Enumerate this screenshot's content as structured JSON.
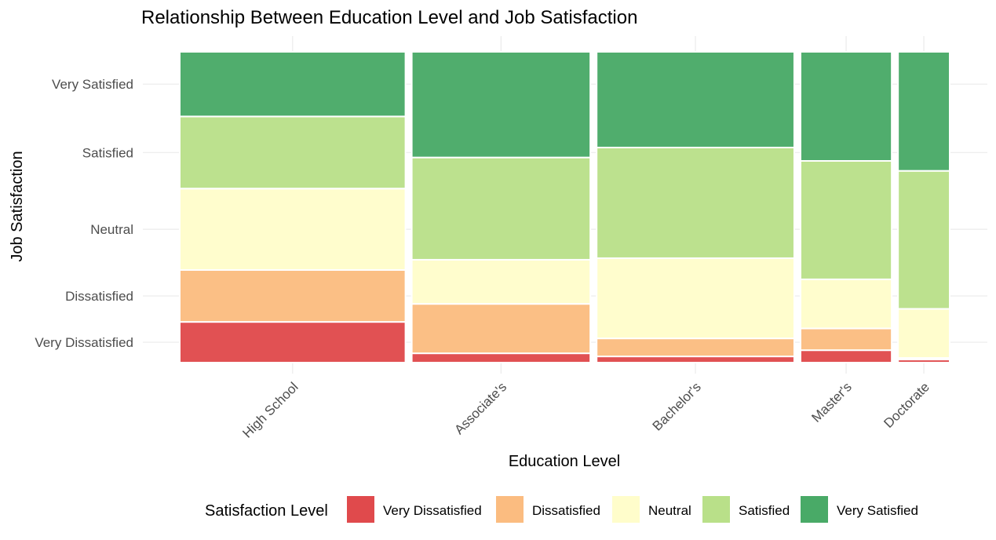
{
  "chart_data": {
    "type": "mosaic",
    "title": "Relationship Between Education Level and Job Satisfaction",
    "xlabel": "Education Level",
    "ylabel": "Job Satisfaction",
    "categories": [
      "High School",
      "Associate's",
      "Bachelor's",
      "Master's",
      "Doctorate"
    ],
    "column_width_shares": [
      0.297,
      0.235,
      0.26,
      0.12,
      0.068
    ],
    "levels": [
      "Very Dissatisfied",
      "Dissatisfied",
      "Neutral",
      "Satisfied",
      "Very Satisfied"
    ],
    "colors": [
      "#e04a4c",
      "#fbbc80",
      "#fffdcb",
      "#b9e089",
      "#49aa67"
    ],
    "proportions": [
      [
        0.131,
        0.167,
        0.262,
        0.232,
        0.208
      ],
      [
        0.03,
        0.159,
        0.142,
        0.329,
        0.34
      ],
      [
        0.02,
        0.058,
        0.258,
        0.356,
        0.308
      ],
      [
        0.04,
        0.07,
        0.158,
        0.381,
        0.351
      ],
      [
        0.01,
        0.005,
        0.158,
        0.444,
        0.383
      ]
    ],
    "y_tick_labels": [
      "Very Dissatisfied",
      "Dissatisfied",
      "Neutral",
      "Satisfied",
      "Very Satisfied"
    ],
    "legend_title": "Satisfaction Level",
    "legend_position": "bottom",
    "grid": true
  }
}
